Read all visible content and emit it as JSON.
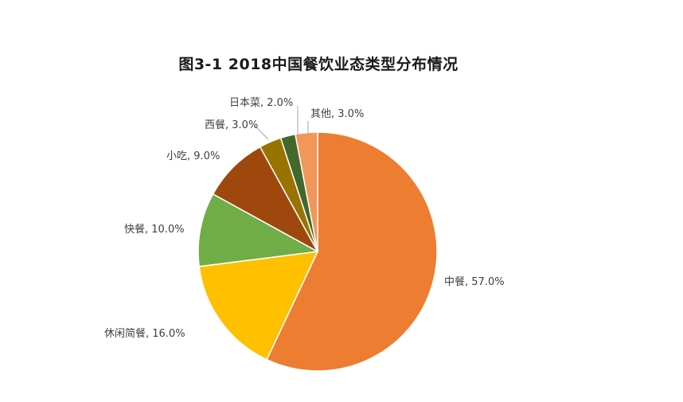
{
  "chart_data": {
    "type": "pie",
    "title": "图3-1  2018中国餐饮业态类型分布情况",
    "unit": "%",
    "slices": [
      {
        "label": "中餐",
        "value": 57.0,
        "value_label": "57.0%",
        "color": "#ED7D31"
      },
      {
        "label": "休闲简餐",
        "value": 16.0,
        "value_label": "16.0%",
        "color": "#FFC000"
      },
      {
        "label": "快餐",
        "value": 10.0,
        "value_label": "10.0%",
        "color": "#70AD47"
      },
      {
        "label": "小吃",
        "value": 9.0,
        "value_label": "9.0%",
        "color": "#9E480E"
      },
      {
        "label": "西餐",
        "value": 3.0,
        "value_label": "3.0%",
        "color": "#997300"
      },
      {
        "label": "日本菜",
        "value": 2.0,
        "value_label": "2.0%",
        "color": "#43682B"
      },
      {
        "label": "其他",
        "value": 3.0,
        "value_label": "3.0%",
        "color": "#F1975A"
      }
    ],
    "start_angle_deg": 0,
    "direction": "clockwise",
    "slice_border_color": "#ffffff",
    "label_color": "#404040",
    "legend": "none"
  }
}
